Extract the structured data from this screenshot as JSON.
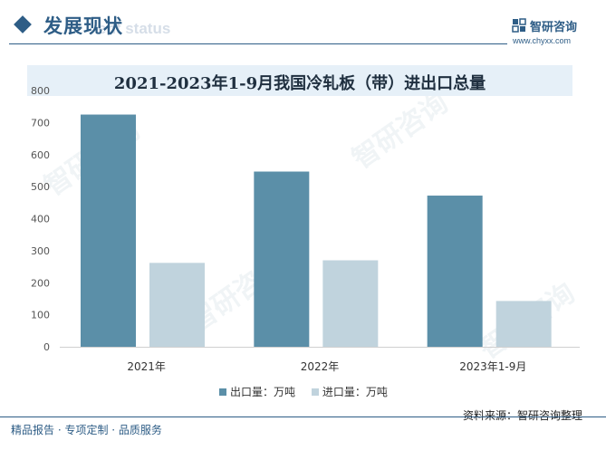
{
  "header": {
    "section_title": "发展现状",
    "section_subtitle": "ent status",
    "brand_name": "智研咨询",
    "brand_url": "www.chyxx.com"
  },
  "source_text": "资料来源：智研咨询整理",
  "footer_text": "精品报告 · 专项定制 · 品质服务",
  "watermark_text": "智研咨询",
  "chart_data": {
    "type": "bar",
    "title": "2021-2023年1-9月我国冷轧板（带）进出口总量",
    "categories": [
      "2021年",
      "2022年",
      "2023年1-9月"
    ],
    "series": [
      {
        "name": "出口量：万吨",
        "values": [
          725,
          547,
          472
        ],
        "color": "#5b8fa8"
      },
      {
        "name": "进口量：万吨",
        "values": [
          262,
          270,
          143
        ],
        "color": "#c0d3dd"
      }
    ],
    "xlabel": "",
    "ylabel": "",
    "ylim": [
      0,
      800
    ],
    "yticks": [
      0,
      100,
      200,
      300,
      400,
      500,
      600,
      700,
      800
    ],
    "grid": false,
    "legend": "bottom"
  }
}
